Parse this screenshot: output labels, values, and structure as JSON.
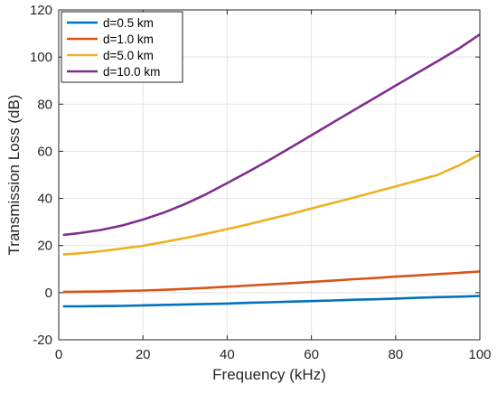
{
  "chart_data": {
    "type": "line",
    "title": "",
    "xlabel": "Frequency (kHz)",
    "ylabel": "Transmission Loss (dB)",
    "xlim": [
      0,
      100
    ],
    "ylim": [
      -20,
      120
    ],
    "xticks": [
      0,
      20,
      40,
      60,
      80,
      100
    ],
    "yticks": [
      -20,
      0,
      20,
      40,
      60,
      80,
      100,
      120
    ],
    "xtick_labels": [
      "0",
      "20",
      "40",
      "60",
      "80",
      "100"
    ],
    "ytick_labels": [
      "-20",
      "0",
      "20",
      "40",
      "60",
      "80",
      "100",
      "120"
    ],
    "grid": true,
    "legend_position": "top-left",
    "x": [
      1,
      5,
      10,
      15,
      20,
      25,
      30,
      35,
      40,
      45,
      50,
      55,
      60,
      65,
      70,
      75,
      80,
      85,
      90,
      95,
      100
    ],
    "series": [
      {
        "name": "d=0.5 km",
        "color": "#0072BD",
        "values": [
          -5.8,
          -5.8,
          -5.7,
          -5.6,
          -5.4,
          -5.2,
          -5.0,
          -4.8,
          -4.6,
          -4.3,
          -4.1,
          -3.8,
          -3.6,
          -3.3,
          -3.0,
          -2.8,
          -2.5,
          -2.2,
          -1.9,
          -1.7,
          -1.4
        ]
      },
      {
        "name": "d=1.0 km",
        "color": "#D95319",
        "values": [
          0.3,
          0.4,
          0.5,
          0.7,
          0.9,
          1.2,
          1.6,
          2.0,
          2.5,
          3.0,
          3.5,
          4.0,
          4.6,
          5.1,
          5.7,
          6.2,
          6.8,
          7.3,
          7.9,
          8.4,
          9.0
        ]
      },
      {
        "name": "d=5.0 km",
        "color": "#EDB120",
        "values": [
          16.2,
          16.7,
          17.6,
          18.7,
          19.9,
          21.5,
          23.2,
          25.0,
          27.0,
          29.0,
          31.2,
          33.4,
          35.7,
          38.0,
          40.3,
          42.7,
          45.1,
          47.5,
          50.0,
          54.0,
          58.7
        ]
      },
      {
        "name": "d=10.0 km",
        "color": "#7E2F8E",
        "values": [
          24.5,
          25.3,
          26.6,
          28.5,
          31.0,
          34.0,
          37.6,
          41.8,
          46.5,
          51.3,
          56.3,
          61.5,
          66.8,
          72.1,
          77.4,
          82.6,
          87.9,
          93.1,
          98.3,
          103.6,
          109.6
        ]
      }
    ]
  }
}
